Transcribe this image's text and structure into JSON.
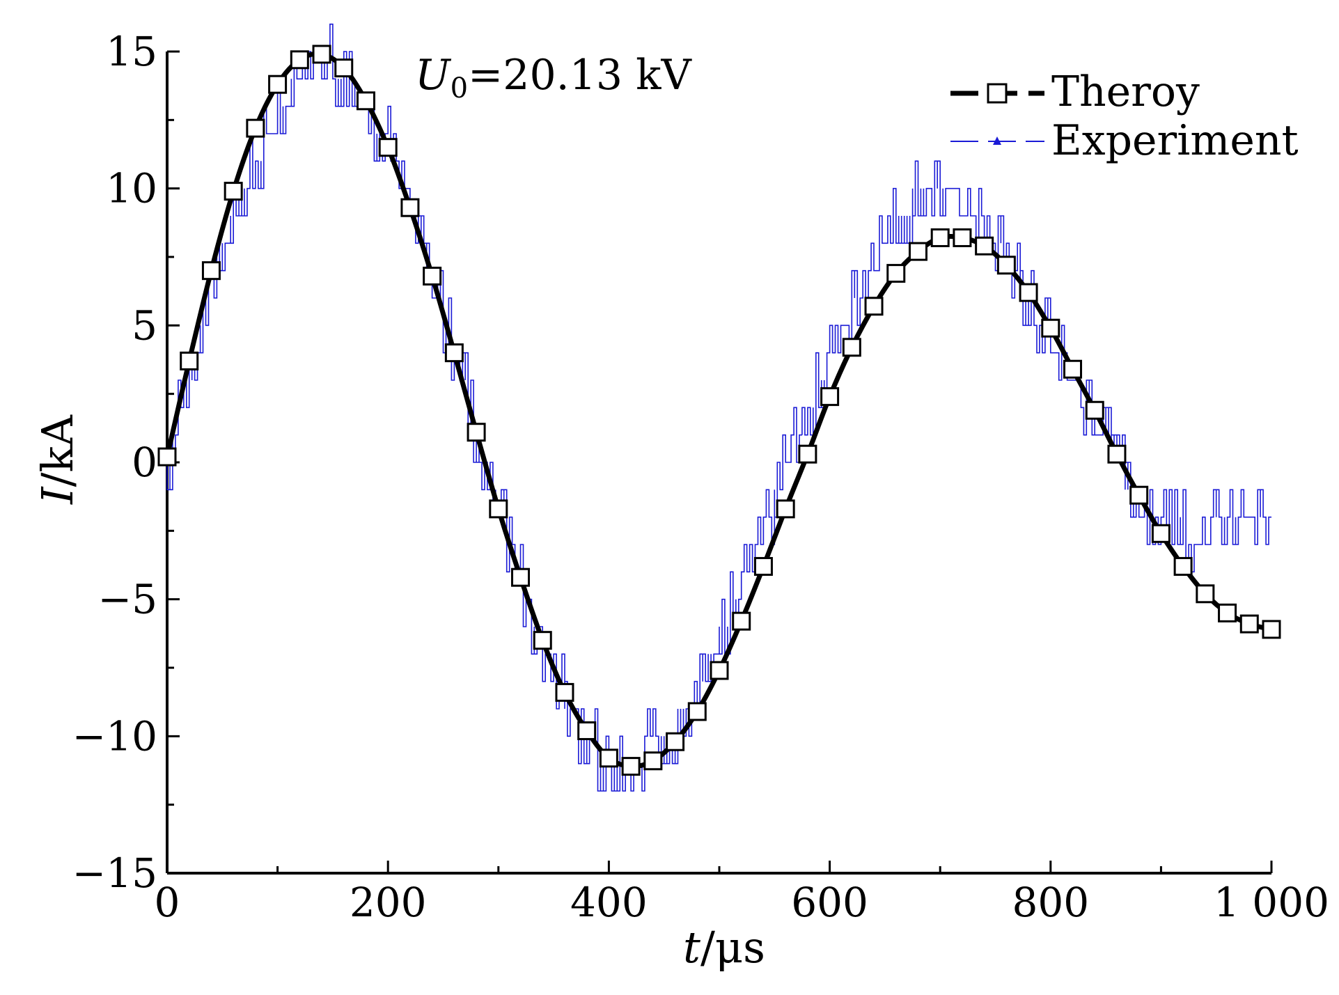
{
  "chart_data": {
    "type": "line",
    "annotation": {
      "symbol": "U",
      "subscript": "0",
      "value": "=20.13 kV"
    },
    "xlabel": {
      "var": "t",
      "unit": "/μs"
    },
    "ylabel": {
      "var": "I",
      "unit": "/kA"
    },
    "xlim": [
      0,
      1000
    ],
    "ylim": [
      -15,
      15
    ],
    "x_ticks": [
      0,
      200,
      400,
      600,
      800,
      1000
    ],
    "x_tick_labels": [
      "0",
      "200",
      "400",
      "600",
      "800",
      "1 000"
    ],
    "y_ticks": [
      -15,
      -10,
      -5,
      0,
      5,
      10,
      15
    ],
    "y_tick_labels": [
      "−15",
      "−10",
      "−5",
      "0",
      "5",
      "10",
      "15"
    ],
    "grid": false,
    "legend_position": "top-right",
    "series": [
      {
        "name": "Theroy",
        "color": "#000000",
        "marker": "open-square",
        "x": [
          0,
          20,
          40,
          60,
          80,
          100,
          120,
          140,
          160,
          180,
          200,
          220,
          240,
          260,
          280,
          300,
          320,
          340,
          360,
          380,
          400,
          420,
          440,
          460,
          480,
          500,
          520,
          540,
          560,
          580,
          600,
          620,
          640,
          660,
          680,
          700,
          720,
          740,
          760,
          780,
          800,
          820,
          840,
          860,
          880,
          900,
          920,
          940,
          960,
          980,
          1000
        ],
        "y": [
          0.2,
          3.7,
          7.0,
          9.9,
          12.2,
          13.8,
          14.7,
          14.9,
          14.4,
          13.2,
          11.5,
          9.3,
          6.8,
          4.0,
          1.1,
          -1.7,
          -4.2,
          -6.5,
          -8.4,
          -9.8,
          -10.8,
          -11.1,
          -10.9,
          -10.2,
          -9.1,
          -7.6,
          -5.8,
          -3.8,
          -1.7,
          0.3,
          2.4,
          4.2,
          5.7,
          6.9,
          7.7,
          8.2,
          8.2,
          7.9,
          7.2,
          6.2,
          4.9,
          3.4,
          1.9,
          0.3,
          -1.2,
          -2.6,
          -3.8,
          -4.8,
          -5.5,
          -5.9,
          -6.1
        ]
      },
      {
        "name": "Experiment",
        "color": "#1a1ad6",
        "marker": "filled-triangle",
        "x": [
          0,
          20,
          40,
          60,
          80,
          100,
          120,
          140,
          160,
          180,
          200,
          220,
          240,
          260,
          280,
          300,
          320,
          340,
          360,
          380,
          400,
          420,
          440,
          460,
          480,
          500,
          520,
          540,
          560,
          580,
          600,
          620,
          640,
          660,
          680,
          700,
          720,
          740,
          760,
          780,
          800,
          820,
          840,
          860,
          880,
          900,
          920,
          940,
          960,
          980,
          1000
        ],
        "y": [
          0.0,
          3.0,
          6.5,
          9.0,
          11.0,
          12.7,
          14.2,
          14.8,
          14.2,
          13.0,
          11.5,
          9.4,
          6.8,
          4.0,
          1.0,
          -1.8,
          -4.4,
          -6.8,
          -8.6,
          -10.2,
          -11.0,
          -10.8,
          -10.4,
          -9.6,
          -8.2,
          -6.4,
          -4.4,
          -2.3,
          -0.2,
          1.9,
          3.9,
          5.6,
          7.2,
          8.8,
          9.8,
          9.9,
          9.4,
          8.5,
          7.3,
          5.8,
          4.5,
          3.0,
          1.6,
          0.0,
          -1.6,
          -2.3,
          -2.5,
          -2.6,
          -2.2,
          -1.9,
          -1.6
        ]
      }
    ]
  }
}
